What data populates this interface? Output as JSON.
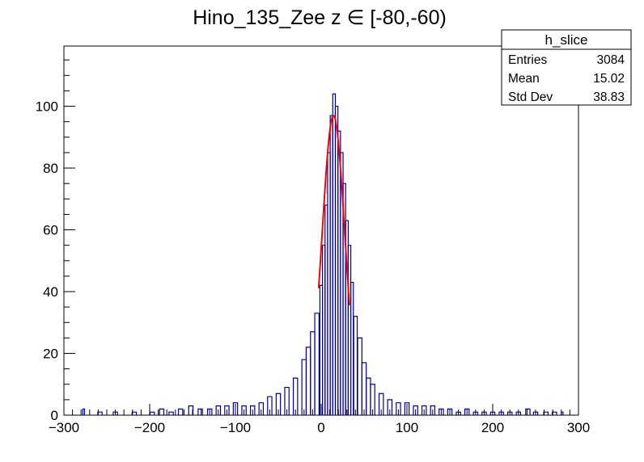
{
  "chart_data": {
    "type": "histogram",
    "title": "Hino_135_Zee z  ∈ [-80,-60)",
    "xlabel": "",
    "ylabel": "",
    "xlim": [
      -300,
      300
    ],
    "ylim": [
      0,
      119.5
    ],
    "x_ticks": [
      -300,
      -200,
      -100,
      0,
      100,
      200,
      300
    ],
    "y_ticks": [
      0,
      20,
      40,
      60,
      80,
      100
    ],
    "grid": false,
    "histogram": {
      "color": "#000099",
      "bin_centers": [
        -277,
        -258,
        -240,
        -218,
        -197,
        -186,
        -175,
        -164,
        -152,
        -141,
        -130,
        -120,
        -110,
        -100,
        -90,
        -80,
        -70,
        -60,
        -50,
        -40,
        -30,
        -20,
        -15,
        -10,
        -5,
        0,
        3,
        6,
        9,
        12,
        15,
        18,
        21,
        24,
        27,
        30,
        33,
        36,
        40,
        45,
        50,
        55,
        60,
        70,
        80,
        90,
        100,
        110,
        120,
        130,
        140,
        150,
        160,
        170,
        180,
        190,
        200,
        210,
        220,
        230,
        241,
        250,
        262,
        272,
        281
      ],
      "counts": [
        2,
        1,
        1,
        1,
        1,
        2,
        1,
        2,
        3,
        2,
        2,
        3,
        3,
        4,
        3,
        3,
        4,
        6,
        7,
        9,
        12,
        18,
        22,
        27,
        33,
        42,
        55,
        68,
        85,
        97,
        104,
        100,
        92,
        85,
        75,
        63,
        55,
        43,
        32,
        25,
        17,
        12,
        10,
        7,
        5,
        4,
        4,
        3,
        3,
        3,
        2,
        2,
        1,
        2,
        1,
        1,
        1,
        1,
        1,
        1,
        2,
        1,
        1,
        1,
        1
      ]
    },
    "fit": {
      "color": "#ff0000",
      "x_range": [
        -3,
        33
      ],
      "function": "gaussian",
      "amplitude": 97,
      "mean": 14.3,
      "sigma": 13.2
    },
    "legend": "none",
    "stats_box": {
      "position": "top-right",
      "title": "h_slice",
      "rows": [
        {
          "label": "Entries",
          "value": "3084"
        },
        {
          "label": "Mean",
          "value": "15.02"
        },
        {
          "label": "Std Dev",
          "value": "38.83"
        }
      ]
    }
  }
}
